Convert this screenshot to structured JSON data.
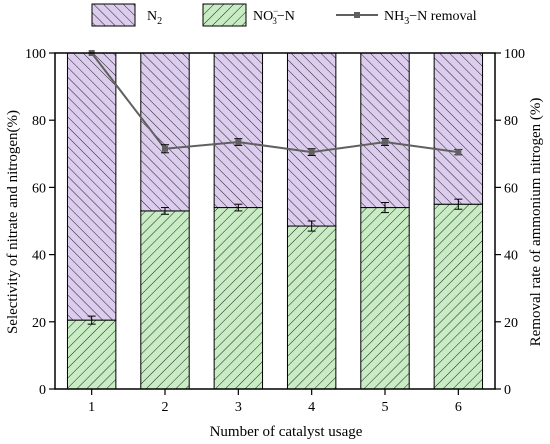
{
  "chart_data": {
    "type": "bar",
    "categories": [
      "1",
      "2",
      "3",
      "4",
      "5",
      "6"
    ],
    "xlabel": "Number of catalyst usage",
    "ylabel": "Selectivity of nitrate and nitrogen(%)",
    "y2label": "Removal rate of ammonium nitrogen (%)",
    "ylim": [
      0,
      100
    ],
    "y2lim": [
      0,
      100
    ],
    "yticks": [
      "0",
      "20",
      "40",
      "60",
      "80",
      "100"
    ],
    "y2ticks": [
      "0",
      "20",
      "40",
      "60",
      "80",
      "100"
    ],
    "stacked": true,
    "legend_position": "top",
    "series": [
      {
        "name": "NO3−N",
        "kind": "bar",
        "values": [
          20.5,
          53,
          54,
          48.5,
          54,
          55
        ],
        "error": [
          1.2,
          1.0,
          1.0,
          1.5,
          1.5,
          1.5
        ],
        "fill": "#c8ecc4"
      },
      {
        "name": "N2",
        "kind": "bar",
        "values": [
          79.5,
          47,
          46,
          51.5,
          46,
          45
        ],
        "fill": "#dccdee"
      },
      {
        "name": "NH3−N removal",
        "kind": "line",
        "axis": "right",
        "values": [
          100,
          71.5,
          73.5,
          70.5,
          73.5,
          70.5
        ],
        "error": [
          0,
          1.2,
          1.0,
          1.0,
          1.0,
          0.8
        ],
        "color": "#606060"
      }
    ],
    "legend": {
      "n2": {
        "base": "N",
        "sub": "2"
      },
      "no3": {
        "base": "NO",
        "sup": "−",
        "sub": "3",
        "tail": "−N"
      },
      "nh3": {
        "base": "NH",
        "sub": "3",
        "tail": "−N removal"
      }
    }
  }
}
